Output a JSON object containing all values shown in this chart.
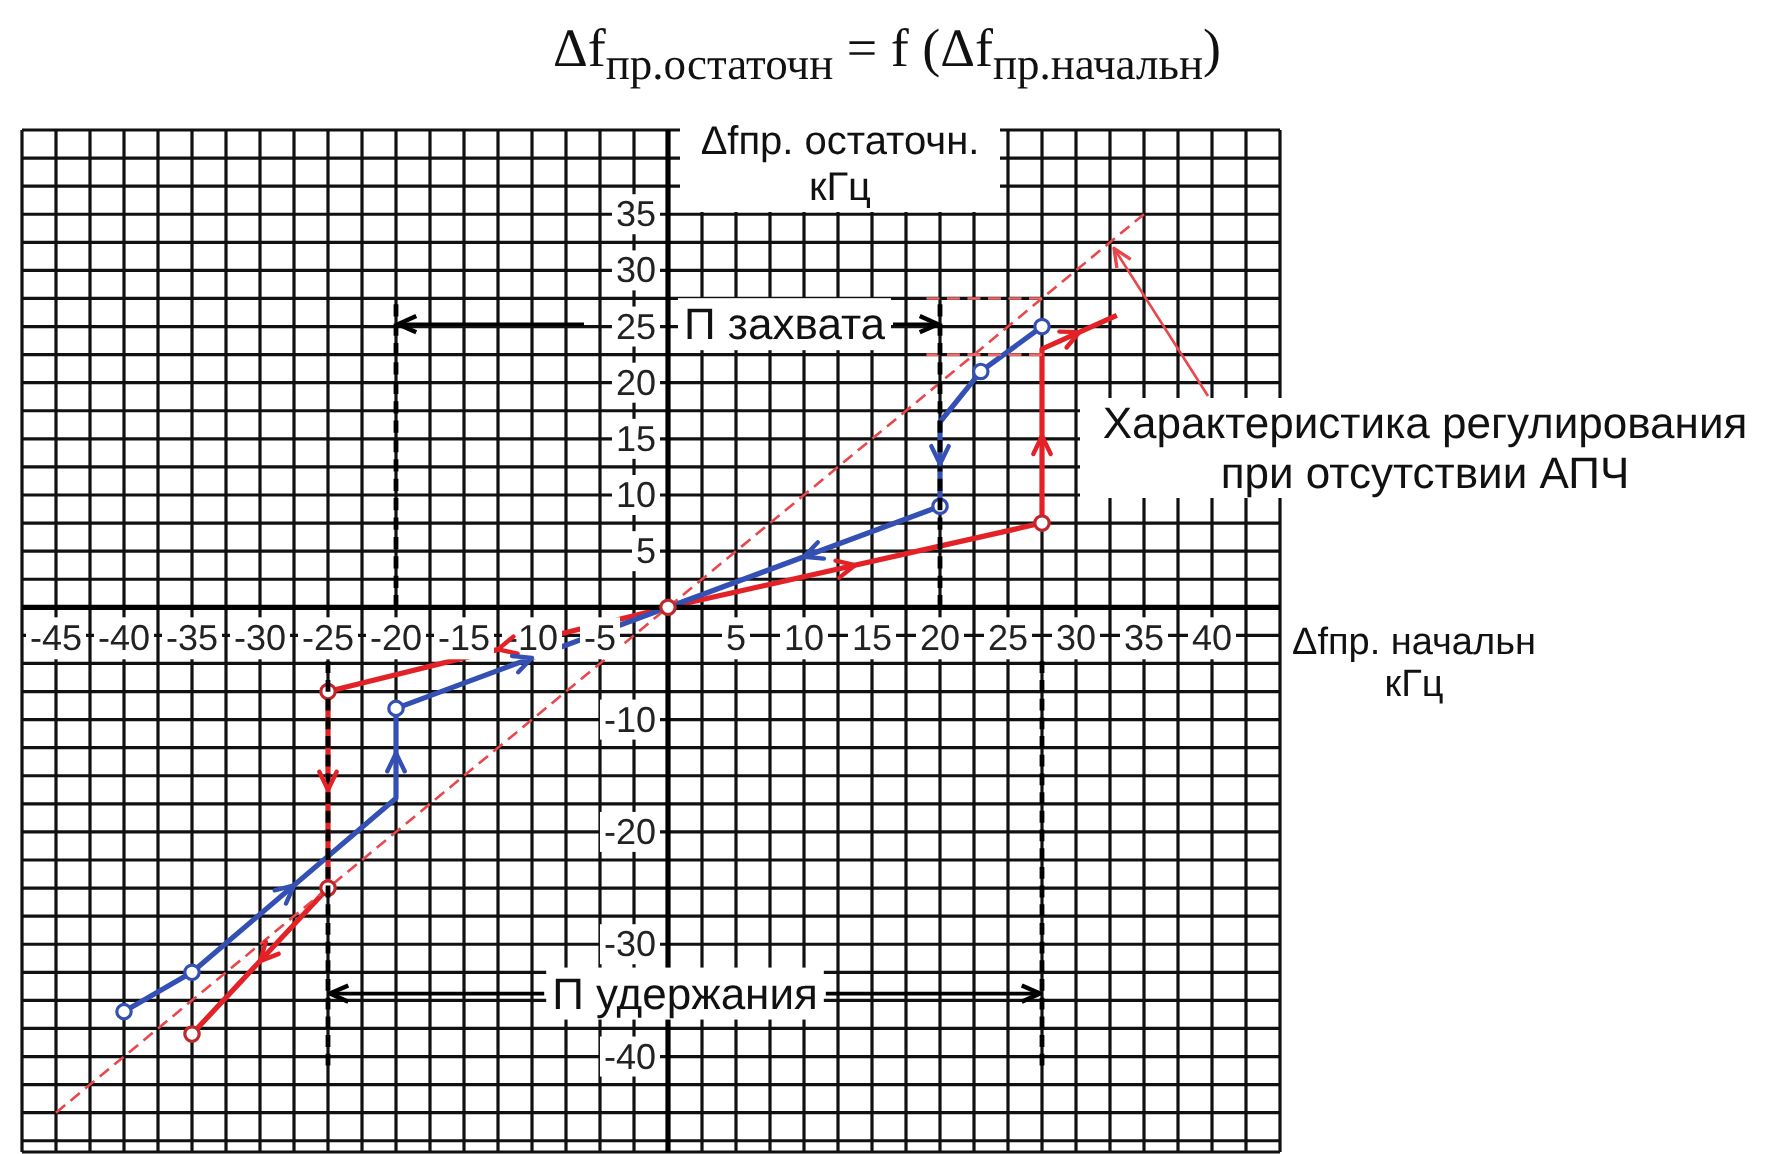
{
  "chart_data": {
    "type": "line",
    "title": "Δf$_{пр.остаточн}$ = f (Δf$_{пр.начальн}$)",
    "xlabel": "Δfпр. начальн кГц",
    "ylabel": "Δfпр. остаточн. кГц",
    "annotations": [
      {
        "text": "Характеристика регулирования при отсутствии АПЧ",
        "x": 32.5,
        "y": 32.5
      }
    ],
    "xlim": [
      -47.5,
      45
    ],
    "xticks": [
      {
        "value": -47.5,
        "label": null
      },
      -45,
      {
        "value": -42.5,
        "label": null
      },
      -40,
      {
        "value": -37.5,
        "label": null
      },
      -35,
      {
        "value": -32.5,
        "label": null
      },
      -30,
      {
        "value": -27.5,
        "label": null
      },
      -25,
      {
        "value": -22.5,
        "label": null
      },
      -20,
      {
        "value": -17.5,
        "label": null
      },
      -15,
      {
        "value": -12.5,
        "label": null
      },
      -10,
      {
        "value": -7.5,
        "label": null
      },
      -5,
      {
        "value": -2.5,
        "label": null
      },
      {
        "value": 0,
        "label": null
      },
      {
        "value": 2.5,
        "label": null
      },
      5,
      {
        "value": 7.5,
        "label": null
      },
      10,
      {
        "value": 12.5,
        "label": null
      },
      15,
      {
        "value": 17.5,
        "label": null
      },
      20,
      {
        "value": 22.5,
        "label": null
      },
      25,
      {
        "value": 27.5,
        "label": null
      },
      30,
      {
        "value": 32.5,
        "label": null
      },
      35,
      {
        "value": 37.5,
        "label": null
      },
      40,
      {
        "value": 42.5,
        "label": null
      },
      {
        "value": 45,
        "label": null
      }
    ],
    "ylim": [
      -48.5,
      42.5
    ],
    "yticks": [
      {
        "value": -47.5,
        "label": null
      },
      {
        "value": -45,
        "label": null
      },
      {
        "value": -42.5,
        "label": null
      },
      -40,
      {
        "value": -37.5,
        "label": null
      },
      {
        "value": -35,
        "label": null
      },
      {
        "value": -32.5,
        "label": null
      },
      -30,
      {
        "value": -27.5,
        "label": null
      },
      {
        "value": -25,
        "label": null
      },
      {
        "value": -22.5,
        "label": null
      },
      -20,
      {
        "value": -17.5,
        "label": null
      },
      {
        "value": -15,
        "label": null
      },
      {
        "value": -12.5,
        "label": null
      },
      -10,
      {
        "value": -7.5,
        "label": null
      },
      {
        "value": -5,
        "label": null
      },
      {
        "value": -2.5,
        "label": null
      },
      {
        "value": 0,
        "label": null
      },
      {
        "value": 2.5,
        "label": null
      },
      5,
      {
        "value": 7.5,
        "label": null
      },
      10,
      {
        "value": 12.5,
        "label": null
      },
      15,
      {
        "value": 17.5,
        "label": null
      },
      20,
      {
        "value": 22.5,
        "label": null
      },
      25,
      {
        "value": 27.5,
        "label": null
      },
      30,
      {
        "value": 32.5,
        "label": null
      },
      35,
      {
        "value": 37.5,
        "label": null
      },
      {
        "value": 40,
        "label": null
      },
      {
        "value": 42.5,
        "label": null
      }
    ],
    "grid": true,
    "series": [
      {
        "color": "#e32227",
        "line_style": "solid",
        "x": [
          0,
          27.5,
          27.5,
          33
        ],
        "values": [
          0,
          7.5,
          23,
          26
        ]
      },
      {
        "color": "#e32227",
        "line_style": "solid",
        "x": [
          0,
          -25,
          -25,
          -35
        ],
        "values": [
          0,
          -7.5,
          -25,
          -38
        ]
      },
      {
        "color": "#3450b4",
        "line_style": "solid",
        "x": [
          27.5,
          23,
          20,
          20,
          0
        ],
        "values": [
          25,
          21,
          16.5,
          9,
          0
        ]
      },
      {
        "color": "#3450b4",
        "line_style": "solid",
        "x": [
          -40,
          -35,
          -20,
          -20,
          0
        ],
        "values": [
          -36,
          -32.5,
          -17,
          -9,
          0
        ]
      },
      {
        "color": "#e8474b",
        "line_style": "dashed",
        "x": [
          -45,
          35
        ],
        "values": [
          -45,
          35
        ]
      },
      {
        "color": "#ee6a6a",
        "line_style": "dashed",
        "x": [
          19,
          27.5
        ],
        "values": [
          27.5,
          27.5
        ]
      },
      {
        "color": "#ee6a6a",
        "line_style": "dashed",
        "x": [
          19,
          27.5
        ],
        "values": [
          22.5,
          22.5
        ]
      },
      {
        "type": "scatter",
        "color": "#3450b4",
        "marker": "circle",
        "x": [
          -40,
          -35,
          -20,
          20,
          23,
          27.5
        ],
        "values": [
          -36,
          -32.5,
          -9,
          9,
          21,
          25
        ]
      },
      {
        "type": "scatter",
        "color": "#c0282c",
        "marker": "circle",
        "x": [
          -35,
          -25,
          -25,
          0,
          27.5
        ],
        "values": [
          -38,
          -25,
          -7.5,
          0,
          7.5
        ]
      }
    ],
    "ref_lines": [
      {
        "axis": "x",
        "value": -20,
        "color": "#000000",
        "line_style": "dashed"
      },
      {
        "axis": "x",
        "value": 20,
        "label": "П захвата",
        "color": "#000000",
        "line_style": "dashed"
      },
      {
        "axis": "x",
        "value": -25,
        "label": "П удержания",
        "color": "#000000",
        "line_style": "dashed"
      },
      {
        "axis": "x",
        "value": 27.5,
        "color": "#000000",
        "line_style": "dashed"
      }
    ]
  }
}
